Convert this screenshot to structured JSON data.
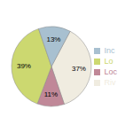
{
  "chart_data": {
    "type": "pie",
    "categories": [
      "Riv",
      "Loc",
      "Lo",
      "Inc"
    ],
    "values": [
      37,
      11,
      39,
      13
    ],
    "value_labels": [
      "37%",
      "11%",
      "39%",
      "13%"
    ],
    "data_labels": true,
    "colors": [
      "#f0ece0",
      "#c08898",
      "#ccd870",
      "#a8c0d0"
    ],
    "legend": "right"
  }
}
